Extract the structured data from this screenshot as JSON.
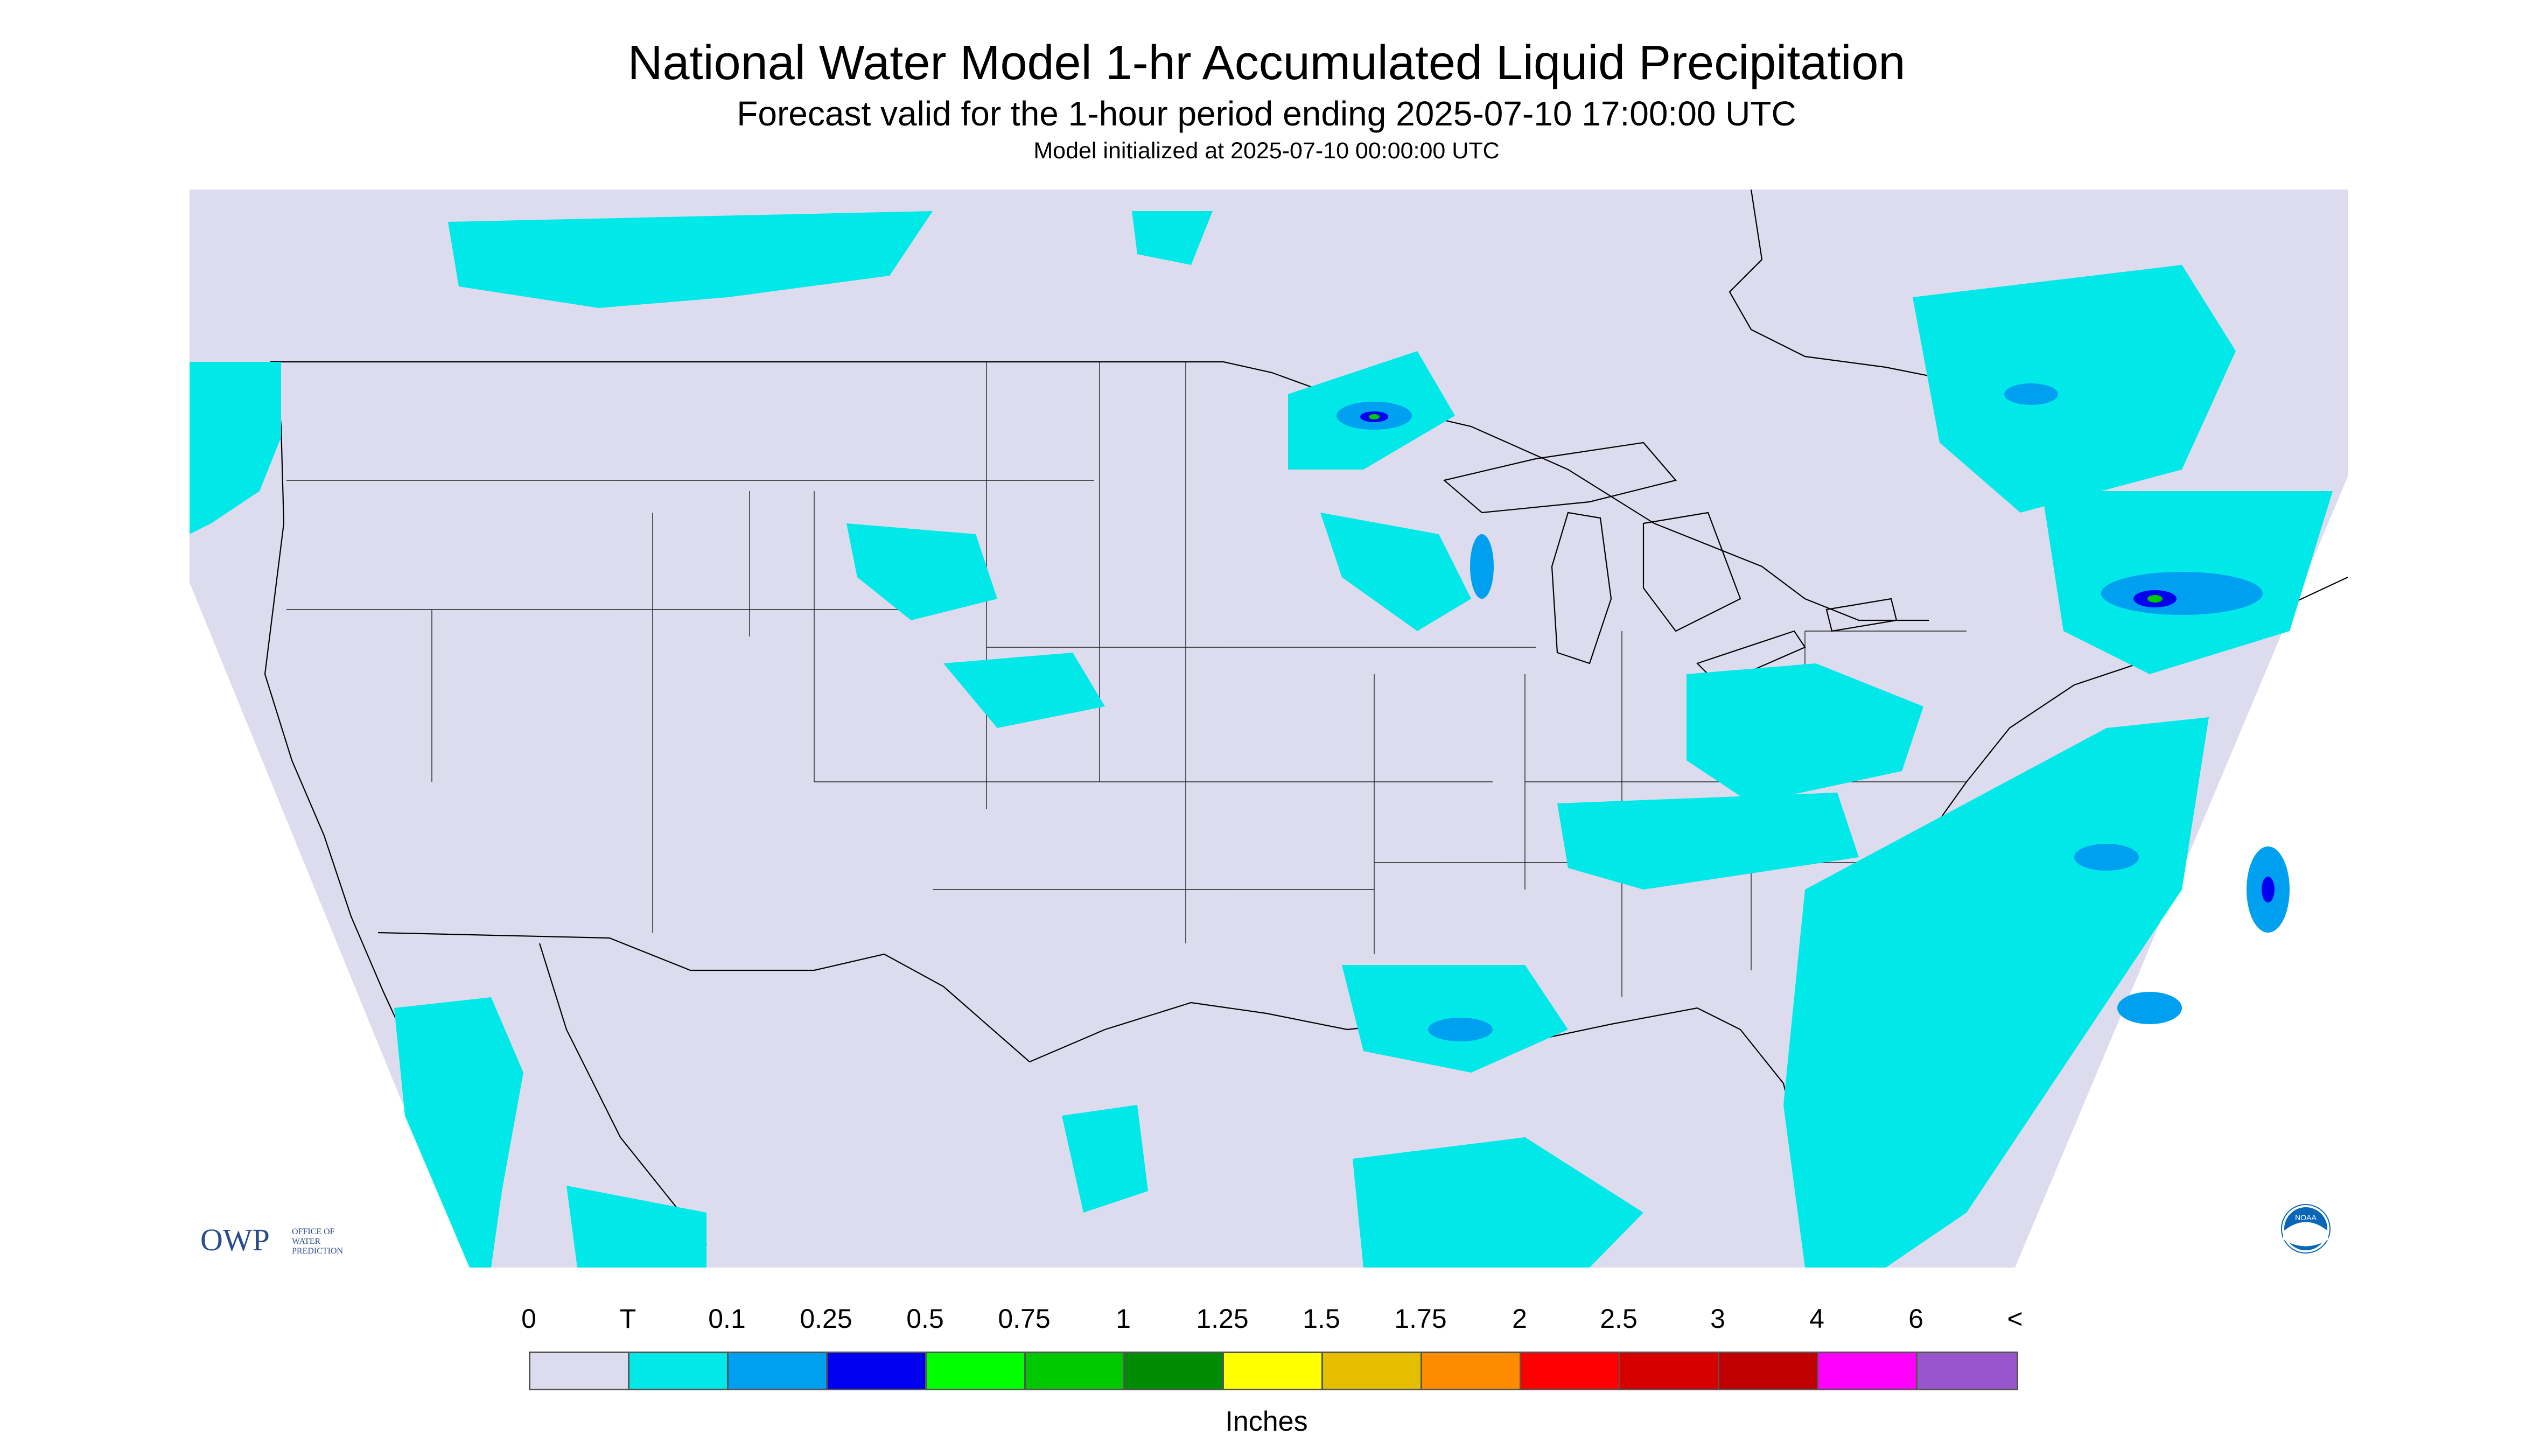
{
  "title": "National Water Model 1-hr Accumulated Liquid Precipitation",
  "subtitle": "Forecast valid for the 1-hour period ending 2025-07-10 17:00:00 UTC",
  "init_line": "Model initialized at 2025-07-10 00:00:00 UTC",
  "logos": {
    "owp_mark": "OWP",
    "owp_text": [
      "OFFICE OF",
      "WATER",
      "PREDICTION"
    ],
    "noaa_text": "NOAA"
  },
  "legend": {
    "tick_labels": [
      "0",
      "T",
      "0.1",
      "0.25",
      "0.5",
      "0.75",
      "1",
      "1.25",
      "1.5",
      "1.75",
      "2",
      "2.5",
      "3",
      "4",
      "6",
      "<"
    ],
    "colors": [
      "#dcdcee",
      "#00e8e8",
      "#00a0f0",
      "#0000f0",
      "#00ff00",
      "#00c800",
      "#008c00",
      "#ffff00",
      "#e6be00",
      "#ff8c00",
      "#ff0000",
      "#d60000",
      "#c00000",
      "#ff00ff",
      "#9955cc"
    ],
    "units": "Inches"
  },
  "map_colors": {
    "outside": "#ffffff",
    "background": "#dcdcee",
    "trace": "#00e8e8",
    "light": "#00a0f0",
    "moderate": "#0000f0",
    "heavy": "#00c800",
    "border": "#000000"
  }
}
